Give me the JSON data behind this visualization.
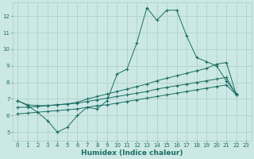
{
  "xlabel": "Humidex (Indice chaleur)",
  "bg_color": "#cce8e4",
  "grid_color": "#aaccc8",
  "line_color": "#1a6e64",
  "x_values": [
    0,
    1,
    2,
    3,
    4,
    5,
    6,
    7,
    8,
    9,
    10,
    11,
    12,
    13,
    14,
    15,
    16,
    17,
    18,
    19,
    20,
    21,
    22,
    23
  ],
  "main_line": [
    6.9,
    6.6,
    6.2,
    5.7,
    5.0,
    5.3,
    6.0,
    6.5,
    6.4,
    6.9,
    8.5,
    8.8,
    10.4,
    12.5,
    11.75,
    12.35,
    12.35,
    10.8,
    9.5,
    9.25,
    9.0,
    8.1,
    7.3,
    null
  ],
  "line2": [
    6.9,
    6.65,
    6.6,
    6.6,
    6.65,
    6.7,
    6.8,
    7.0,
    7.15,
    7.3,
    7.45,
    7.6,
    7.75,
    7.9,
    8.1,
    8.25,
    8.4,
    8.55,
    8.7,
    8.85,
    9.1,
    9.2,
    7.25,
    null
  ],
  "line3": [
    6.5,
    6.5,
    6.55,
    6.6,
    6.65,
    6.7,
    6.75,
    6.85,
    6.95,
    7.05,
    7.15,
    7.25,
    7.35,
    7.45,
    7.6,
    7.7,
    7.8,
    7.9,
    8.0,
    8.1,
    8.2,
    8.3,
    7.25,
    null
  ],
  "line4": [
    6.1,
    6.15,
    6.2,
    6.25,
    6.3,
    6.35,
    6.4,
    6.5,
    6.6,
    6.65,
    6.75,
    6.85,
    6.95,
    7.05,
    7.15,
    7.25,
    7.35,
    7.45,
    7.55,
    7.65,
    7.75,
    7.85,
    7.25,
    null
  ],
  "ylim": [
    4.5,
    12.8
  ],
  "xlim": [
    -0.5,
    23.5
  ],
  "yticks": [
    5,
    6,
    7,
    8,
    9,
    10,
    11,
    12
  ],
  "xticks": [
    0,
    1,
    2,
    3,
    4,
    5,
    6,
    7,
    8,
    9,
    10,
    11,
    12,
    13,
    14,
    15,
    16,
    17,
    18,
    19,
    20,
    21,
    22,
    23
  ]
}
